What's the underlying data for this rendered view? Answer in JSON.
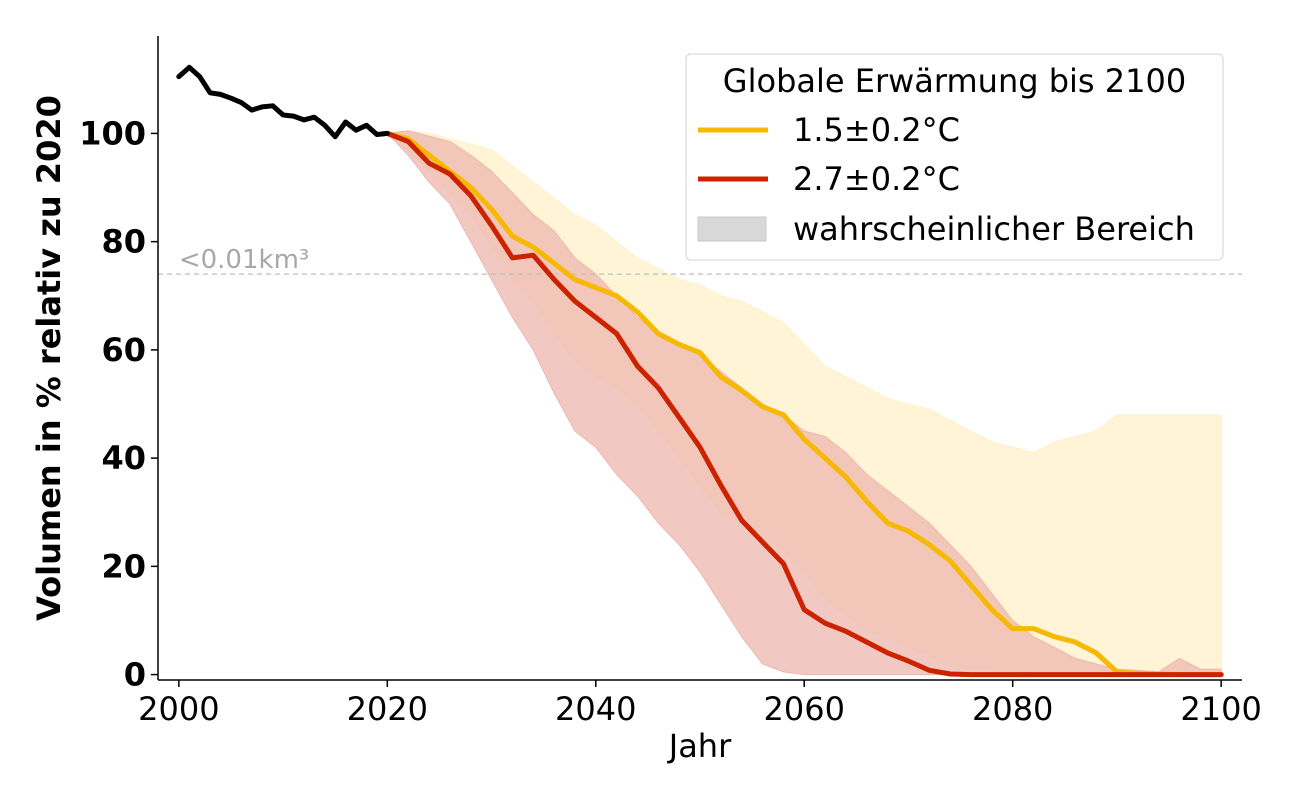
{
  "chart_data": {
    "type": "line",
    "xlabel": "Jahr",
    "ylabel": "Volumen in % relativ zu 2020",
    "xlim": [
      1998,
      2102
    ],
    "ylim": [
      -1,
      118
    ],
    "x_ticks": [
      2000,
      2020,
      2040,
      2060,
      2080,
      2100
    ],
    "y_ticks": [
      0,
      20,
      40,
      60,
      80,
      100
    ],
    "grid": false,
    "reference_line": {
      "y": 74,
      "label": "<0.01km³",
      "color": "#bdbdbd",
      "style": "dashed"
    },
    "legend": {
      "title": "Globale Erwärmung bis 2100",
      "placement": "top-right",
      "entries": [
        {
          "label": "1.5±0.2°C",
          "kind": "line",
          "color": "#f6b800"
        },
        {
          "label": "2.7±0.2°C",
          "kind": "line",
          "color": "#cc2200"
        },
        {
          "label": "wahrscheinlicher Bereich",
          "kind": "area",
          "color": "#d8d8d8"
        }
      ]
    },
    "observed": {
      "color": "#000000",
      "x": [
        2000,
        2001,
        2002,
        2003,
        2004,
        2005,
        2006,
        2007,
        2008,
        2009,
        2010,
        2011,
        2012,
        2013,
        2014,
        2015,
        2016,
        2017,
        2018,
        2019,
        2020
      ],
      "y": [
        110.5,
        112.2,
        110.5,
        107.5,
        107.2,
        106.5,
        105.7,
        104.3,
        104.9,
        105.1,
        103.4,
        103.2,
        102.5,
        103,
        101.5,
        99.4,
        102.1,
        100.6,
        101.5,
        99.8,
        100
      ]
    },
    "series": [
      {
        "name": "1.5±0.2°C",
        "color": "#f6b800",
        "band_color": "#fff0c8",
        "x": [
          2020,
          2022,
          2024,
          2026,
          2028,
          2030,
          2032,
          2034,
          2036,
          2038,
          2040,
          2042,
          2044,
          2046,
          2048,
          2050,
          2052,
          2054,
          2056,
          2058,
          2060,
          2062,
          2064,
          2066,
          2068,
          2070,
          2072,
          2074,
          2076,
          2078,
          2080,
          2082,
          2084,
          2086,
          2088,
          2090,
          2092,
          2094,
          2096,
          2098,
          2100
        ],
        "y": [
          100,
          99,
          96,
          93,
          90,
          86,
          81,
          79,
          76,
          73,
          71.5,
          70,
          67,
          63,
          61,
          59.5,
          55,
          52.5,
          49.5,
          48,
          43.5,
          40,
          36.5,
          32,
          28,
          26.5,
          24,
          21,
          16.5,
          12,
          8.5,
          8.5,
          7,
          6,
          4,
          0.5,
          0.2,
          0.1,
          0,
          0,
          0
        ],
        "upper": [
          100,
          100.5,
          100,
          99,
          98,
          97,
          94,
          91,
          88,
          85,
          83,
          80,
          77,
          75,
          73,
          72,
          70,
          69,
          67,
          65,
          61,
          57,
          55,
          53,
          51,
          50,
          49,
          47,
          45,
          43,
          42,
          41,
          43,
          44,
          45,
          48,
          48,
          48,
          48,
          48,
          48
        ],
        "lower": [
          100,
          97,
          93,
          89,
          85,
          79,
          73,
          69,
          63,
          58,
          55,
          53,
          50,
          45,
          40,
          35,
          30,
          28,
          26,
          23,
          19,
          14,
          11,
          8,
          7,
          5,
          3.5,
          2,
          1,
          1,
          0.5,
          0.3,
          0.2,
          0.1,
          0.1,
          0,
          0,
          0,
          0,
          0,
          0
        ]
      },
      {
        "name": "2.7±0.2°C",
        "color": "#cc2200",
        "band_color": "#eeb7ad",
        "x": [
          2020,
          2022,
          2024,
          2026,
          2028,
          2030,
          2032,
          2034,
          2036,
          2038,
          2040,
          2042,
          2044,
          2046,
          2048,
          2050,
          2052,
          2054,
          2056,
          2058,
          2060,
          2062,
          2064,
          2066,
          2068,
          2070,
          2072,
          2074,
          2076,
          2078,
          2080,
          2082,
          2084,
          2086,
          2088,
          2090,
          2092,
          2094,
          2096,
          2098,
          2100
        ],
        "y": [
          100,
          98.5,
          94.5,
          92.5,
          88.5,
          83,
          77,
          77.5,
          73,
          69,
          66,
          63,
          57,
          53,
          47.5,
          42,
          35,
          28.5,
          24.5,
          20.5,
          12,
          9.5,
          8,
          6,
          4,
          2.5,
          0.8,
          0.1,
          0,
          0,
          0,
          0,
          0,
          0,
          0,
          0,
          0,
          0,
          0,
          0,
          0
        ],
        "upper": [
          100,
          100.5,
          99.5,
          98.5,
          96,
          93,
          89,
          85,
          82,
          77,
          74,
          70,
          66,
          63,
          61,
          59,
          56,
          53,
          50,
          48,
          45,
          44,
          41,
          37,
          34,
          31,
          28,
          24,
          20,
          15,
          10,
          7,
          5,
          3,
          2,
          1,
          0.8,
          0.5,
          3,
          1,
          1
        ],
        "lower": [
          100,
          96,
          91,
          87,
          80,
          73,
          66,
          60,
          52,
          45,
          42,
          37,
          33,
          28,
          24,
          19,
          13,
          7,
          2,
          0.5,
          0,
          0,
          0,
          0,
          0,
          0,
          0,
          0,
          0,
          0,
          0,
          0,
          0,
          0,
          0,
          0,
          0,
          0,
          0,
          0,
          0
        ]
      }
    ]
  }
}
